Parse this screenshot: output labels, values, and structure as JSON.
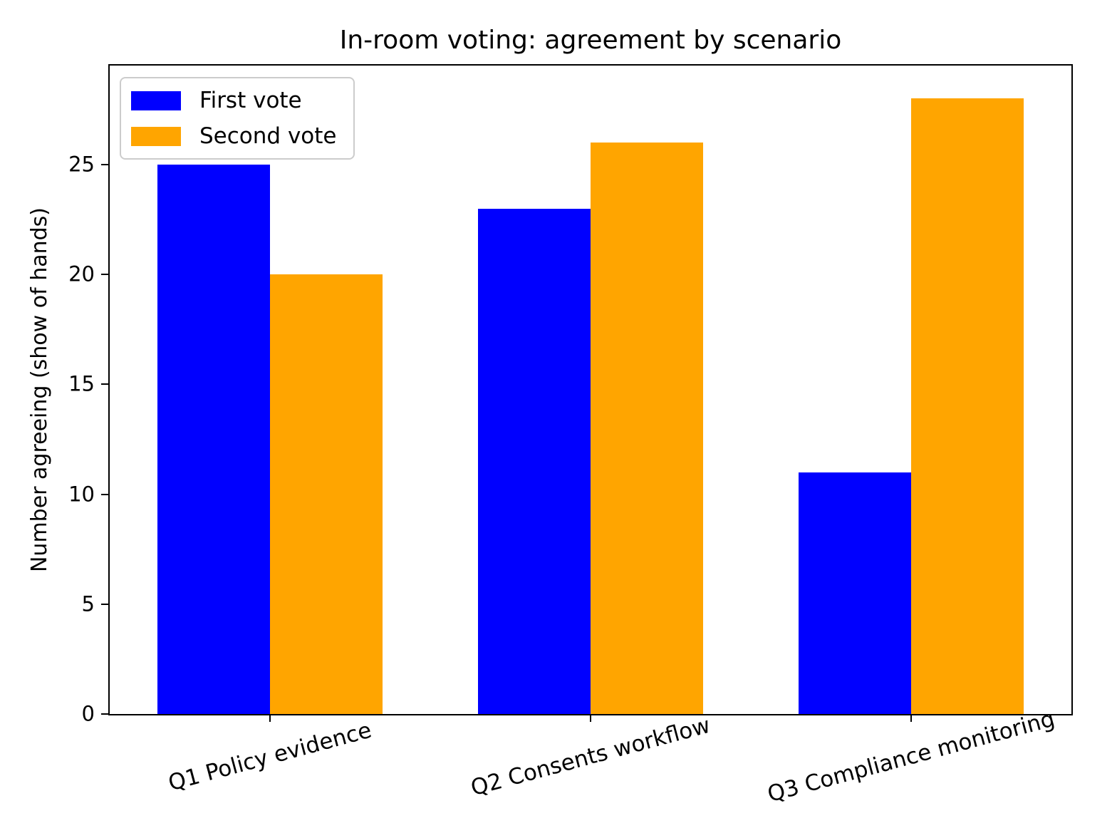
{
  "chart_data": {
    "type": "bar",
    "title": "In-room voting: agreement by scenario",
    "ylabel": "Number agreeing (show of hands)",
    "xlabel": "",
    "categories": [
      "Q1 Policy evidence",
      "Q2 Consents workflow",
      "Q3 Compliance monitoring"
    ],
    "series": [
      {
        "name": "First vote",
        "color": "#0000ff",
        "values": [
          25,
          23,
          11
        ]
      },
      {
        "name": "Second vote",
        "color": "#ffa500",
        "values": [
          20,
          26,
          28
        ]
      }
    ],
    "ylim": [
      0,
      29.5
    ],
    "yticks": [
      0,
      5,
      10,
      15,
      20,
      25
    ],
    "legend_position": "upper left",
    "grid": false,
    "x_tick_rotation_deg": 15,
    "colors": {
      "axis": "#000000",
      "background": "#ffffff",
      "legend_border": "#cccccc"
    }
  }
}
